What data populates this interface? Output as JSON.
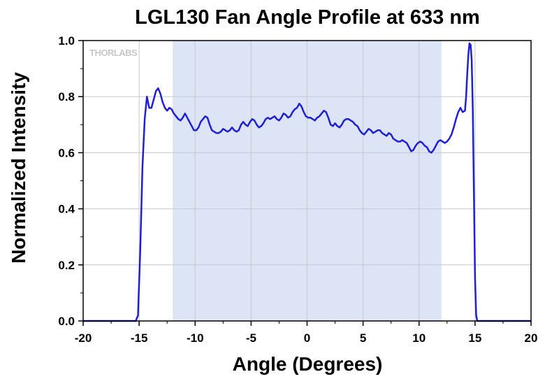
{
  "chart_data": {
    "type": "line",
    "title": "LGL130 Fan Angle Profile at 633 nm",
    "xlabel": "Angle (Degrees)",
    "ylabel": "Normalized Intensity",
    "xlim": [
      -20,
      20
    ],
    "ylim": [
      0.0,
      1.0
    ],
    "x_ticks": [
      -20,
      -15,
      -10,
      -5,
      0,
      5,
      10,
      15,
      20
    ],
    "x_tick_labels": [
      "-20",
      "-15",
      "-10",
      "-5",
      "0",
      "5",
      "10",
      "15",
      "20"
    ],
    "y_ticks": [
      0.0,
      0.2,
      0.4,
      0.6,
      0.8,
      1.0
    ],
    "y_tick_labels": [
      "0.0",
      "0.2",
      "0.4",
      "0.6",
      "0.8",
      "1.0"
    ],
    "grid": true,
    "shaded_region": {
      "x_range": [
        -12,
        12
      ],
      "color": "#dce4f5"
    },
    "watermark": "THORLABS",
    "series": [
      {
        "color": "#1f1fd6",
        "points": [
          [
            -20,
            0.0
          ],
          [
            -15.3,
            0.0
          ],
          [
            -15.1,
            0.02
          ],
          [
            -14.9,
            0.25
          ],
          [
            -14.7,
            0.55
          ],
          [
            -14.5,
            0.72
          ],
          [
            -14.3,
            0.8
          ],
          [
            -14.1,
            0.76
          ],
          [
            -13.9,
            0.76
          ],
          [
            -13.7,
            0.79
          ],
          [
            -13.5,
            0.82
          ],
          [
            -13.3,
            0.83
          ],
          [
            -13.1,
            0.81
          ],
          [
            -12.9,
            0.78
          ],
          [
            -12.7,
            0.76
          ],
          [
            -12.5,
            0.75
          ],
          [
            -12.3,
            0.76
          ],
          [
            -12.1,
            0.755
          ],
          [
            -11.9,
            0.74
          ],
          [
            -11.7,
            0.73
          ],
          [
            -11.5,
            0.72
          ],
          [
            -11.3,
            0.715
          ],
          [
            -11.1,
            0.725
          ],
          [
            -10.9,
            0.74
          ],
          [
            -10.7,
            0.725
          ],
          [
            -10.5,
            0.71
          ],
          [
            -10.3,
            0.695
          ],
          [
            -10.1,
            0.68
          ],
          [
            -9.9,
            0.68
          ],
          [
            -9.7,
            0.69
          ],
          [
            -9.5,
            0.71
          ],
          [
            -9.3,
            0.72
          ],
          [
            -9.1,
            0.73
          ],
          [
            -8.9,
            0.725
          ],
          [
            -8.7,
            0.7
          ],
          [
            -8.5,
            0.68
          ],
          [
            -8.3,
            0.675
          ],
          [
            -8.1,
            0.67
          ],
          [
            -7.9,
            0.67
          ],
          [
            -7.7,
            0.675
          ],
          [
            -7.5,
            0.685
          ],
          [
            -7.3,
            0.68
          ],
          [
            -7.1,
            0.675
          ],
          [
            -6.9,
            0.68
          ],
          [
            -6.7,
            0.69
          ],
          [
            -6.5,
            0.68
          ],
          [
            -6.3,
            0.675
          ],
          [
            -6.1,
            0.68
          ],
          [
            -5.9,
            0.7
          ],
          [
            -5.7,
            0.71
          ],
          [
            -5.5,
            0.7
          ],
          [
            -5.3,
            0.695
          ],
          [
            -5.1,
            0.71
          ],
          [
            -4.9,
            0.72
          ],
          [
            -4.7,
            0.715
          ],
          [
            -4.5,
            0.7
          ],
          [
            -4.3,
            0.69
          ],
          [
            -4.1,
            0.695
          ],
          [
            -3.9,
            0.705
          ],
          [
            -3.7,
            0.72
          ],
          [
            -3.5,
            0.725
          ],
          [
            -3.3,
            0.72
          ],
          [
            -3.1,
            0.725
          ],
          [
            -2.9,
            0.73
          ],
          [
            -2.7,
            0.72
          ],
          [
            -2.5,
            0.715
          ],
          [
            -2.3,
            0.725
          ],
          [
            -2.1,
            0.74
          ],
          [
            -1.9,
            0.735
          ],
          [
            -1.7,
            0.725
          ],
          [
            -1.5,
            0.73
          ],
          [
            -1.3,
            0.745
          ],
          [
            -1.1,
            0.755
          ],
          [
            -0.9,
            0.76
          ],
          [
            -0.7,
            0.775
          ],
          [
            -0.5,
            0.765
          ],
          [
            -0.3,
            0.745
          ],
          [
            -0.1,
            0.73
          ],
          [
            0.1,
            0.725
          ],
          [
            0.3,
            0.725
          ],
          [
            0.5,
            0.72
          ],
          [
            0.7,
            0.715
          ],
          [
            0.9,
            0.725
          ],
          [
            1.1,
            0.73
          ],
          [
            1.3,
            0.74
          ],
          [
            1.5,
            0.75
          ],
          [
            1.7,
            0.745
          ],
          [
            1.9,
            0.725
          ],
          [
            2.1,
            0.7
          ],
          [
            2.3,
            0.695
          ],
          [
            2.5,
            0.705
          ],
          [
            2.7,
            0.695
          ],
          [
            2.9,
            0.69
          ],
          [
            3.1,
            0.7
          ],
          [
            3.3,
            0.715
          ],
          [
            3.5,
            0.72
          ],
          [
            3.7,
            0.72
          ],
          [
            3.9,
            0.715
          ],
          [
            4.1,
            0.71
          ],
          [
            4.3,
            0.7
          ],
          [
            4.5,
            0.695
          ],
          [
            4.7,
            0.68
          ],
          [
            4.9,
            0.67
          ],
          [
            5.1,
            0.665
          ],
          [
            5.3,
            0.675
          ],
          [
            5.5,
            0.685
          ],
          [
            5.7,
            0.68
          ],
          [
            5.9,
            0.67
          ],
          [
            6.1,
            0.675
          ],
          [
            6.3,
            0.68
          ],
          [
            6.5,
            0.68
          ],
          [
            6.7,
            0.67
          ],
          [
            6.9,
            0.665
          ],
          [
            7.1,
            0.66
          ],
          [
            7.3,
            0.67
          ],
          [
            7.5,
            0.665
          ],
          [
            7.7,
            0.65
          ],
          [
            7.9,
            0.645
          ],
          [
            8.1,
            0.64
          ],
          [
            8.3,
            0.64
          ],
          [
            8.5,
            0.645
          ],
          [
            8.7,
            0.64
          ],
          [
            8.9,
            0.635
          ],
          [
            9.1,
            0.62
          ],
          [
            9.3,
            0.605
          ],
          [
            9.5,
            0.61
          ],
          [
            9.7,
            0.625
          ],
          [
            9.9,
            0.635
          ],
          [
            10.1,
            0.64
          ],
          [
            10.3,
            0.635
          ],
          [
            10.5,
            0.625
          ],
          [
            10.7,
            0.62
          ],
          [
            10.9,
            0.605
          ],
          [
            11.1,
            0.6
          ],
          [
            11.3,
            0.61
          ],
          [
            11.5,
            0.625
          ],
          [
            11.7,
            0.64
          ],
          [
            11.9,
            0.645
          ],
          [
            12.1,
            0.64
          ],
          [
            12.3,
            0.635
          ],
          [
            12.5,
            0.64
          ],
          [
            12.7,
            0.65
          ],
          [
            12.9,
            0.665
          ],
          [
            13.1,
            0.69
          ],
          [
            13.3,
            0.72
          ],
          [
            13.5,
            0.745
          ],
          [
            13.7,
            0.76
          ],
          [
            13.9,
            0.745
          ],
          [
            14.1,
            0.75
          ],
          [
            14.2,
            0.8
          ],
          [
            14.3,
            0.88
          ],
          [
            14.4,
            0.95
          ],
          [
            14.5,
            0.99
          ],
          [
            14.6,
            0.985
          ],
          [
            14.7,
            0.93
          ],
          [
            14.8,
            0.75
          ],
          [
            14.9,
            0.45
          ],
          [
            15.0,
            0.15
          ],
          [
            15.1,
            0.02
          ],
          [
            15.2,
            0.0
          ],
          [
            20,
            0.0
          ]
        ]
      }
    ]
  }
}
